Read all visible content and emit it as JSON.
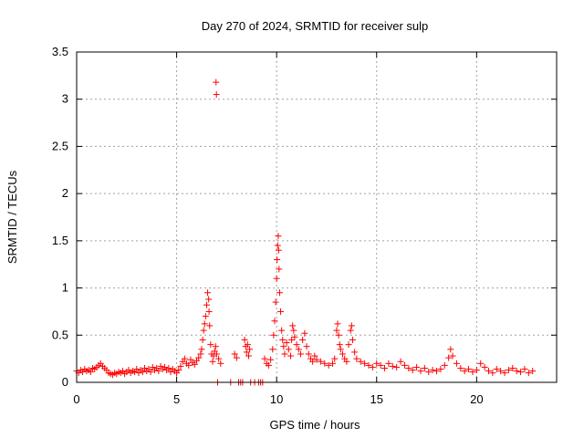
{
  "chart_data": {
    "type": "scatter",
    "title": "Day 270 of 2024, SRMTID for receiver sulp",
    "xlabel": "GPS time / hours",
    "ylabel": "SRMTID / TECUs",
    "xlim": [
      0,
      24
    ],
    "ylim": [
      0,
      3.5
    ],
    "xticks": [
      0,
      5,
      10,
      15,
      20
    ],
    "xtick_labels": [
      "0",
      "5",
      "10",
      "15",
      "20"
    ],
    "yticks": [
      0,
      0.5,
      1,
      1.5,
      2,
      2.5,
      3,
      3.5
    ],
    "ytick_labels": [
      "0",
      "0.5",
      "1",
      "1.5",
      "2",
      "2.5",
      "3",
      "3.5"
    ],
    "grid": true,
    "legend": "none",
    "series": [
      {
        "name": "SRMTID",
        "marker": "+",
        "color": "#ff0000",
        "points": [
          [
            0.0,
            0.12
          ],
          [
            0.1,
            0.1
          ],
          [
            0.2,
            0.13
          ],
          [
            0.3,
            0.11
          ],
          [
            0.4,
            0.14
          ],
          [
            0.5,
            0.12
          ],
          [
            0.6,
            0.13
          ],
          [
            0.7,
            0.11
          ],
          [
            0.8,
            0.15
          ],
          [
            0.9,
            0.14
          ],
          [
            1.0,
            0.16
          ],
          [
            1.1,
            0.18
          ],
          [
            1.2,
            0.2
          ],
          [
            1.3,
            0.17
          ],
          [
            1.4,
            0.15
          ],
          [
            1.5,
            0.13
          ],
          [
            1.6,
            0.1
          ],
          [
            1.7,
            0.09
          ],
          [
            1.8,
            0.08
          ],
          [
            1.9,
            0.1
          ],
          [
            2.0,
            0.09
          ],
          [
            2.1,
            0.11
          ],
          [
            2.2,
            0.1
          ],
          [
            2.3,
            0.12
          ],
          [
            2.4,
            0.09
          ],
          [
            2.5,
            0.11
          ],
          [
            2.6,
            0.13
          ],
          [
            2.7,
            0.1
          ],
          [
            2.8,
            0.12
          ],
          [
            2.9,
            0.11
          ],
          [
            3.0,
            0.14
          ],
          [
            3.1,
            0.1
          ],
          [
            3.2,
            0.13
          ],
          [
            3.3,
            0.11
          ],
          [
            3.4,
            0.15
          ],
          [
            3.5,
            0.12
          ],
          [
            3.6,
            0.14
          ],
          [
            3.7,
            0.11
          ],
          [
            3.8,
            0.16
          ],
          [
            3.9,
            0.13
          ],
          [
            4.0,
            0.15
          ],
          [
            4.1,
            0.12
          ],
          [
            4.2,
            0.17
          ],
          [
            4.3,
            0.14
          ],
          [
            4.4,
            0.16
          ],
          [
            4.5,
            0.13
          ],
          [
            4.6,
            0.15
          ],
          [
            4.7,
            0.11
          ],
          [
            4.8,
            0.14
          ],
          [
            4.9,
            0.12
          ],
          [
            5.0,
            0.1
          ],
          [
            5.1,
            0.13
          ],
          [
            5.2,
            0.17
          ],
          [
            5.3,
            0.22
          ],
          [
            5.4,
            0.25
          ],
          [
            5.5,
            0.2
          ],
          [
            5.6,
            0.18
          ],
          [
            5.7,
            0.24
          ],
          [
            5.8,
            0.21
          ],
          [
            5.9,
            0.19
          ],
          [
            6.0,
            0.23
          ],
          [
            6.1,
            0.26
          ],
          [
            6.2,
            0.3
          ],
          [
            6.25,
            0.35
          ],
          [
            6.3,
            0.45
          ],
          [
            6.35,
            0.55
          ],
          [
            6.4,
            0.62
          ],
          [
            6.45,
            0.7
          ],
          [
            6.5,
            0.82
          ],
          [
            6.55,
            0.95
          ],
          [
            6.6,
            0.88
          ],
          [
            6.62,
            0.75
          ],
          [
            6.65,
            0.6
          ],
          [
            6.7,
            0.4
          ],
          [
            6.75,
            0.3
          ],
          [
            6.8,
            0.22
          ],
          [
            6.85,
            0.28
          ],
          [
            6.9,
            0.33
          ],
          [
            6.95,
            0.38
          ],
          [
            7.0,
            0.3
          ],
          [
            6.97,
            3.18
          ],
          [
            6.99,
            3.05
          ],
          [
            7.05,
            0.0
          ],
          [
            7.1,
            0.25
          ],
          [
            7.2,
            0.2
          ],
          [
            7.7,
            0.0
          ],
          [
            7.9,
            0.3
          ],
          [
            8.0,
            0.26
          ],
          [
            8.1,
            0.0
          ],
          [
            8.2,
            0.0
          ],
          [
            8.3,
            0.0
          ],
          [
            8.4,
            0.45
          ],
          [
            8.45,
            0.38
          ],
          [
            8.5,
            0.32
          ],
          [
            8.55,
            0.4
          ],
          [
            8.6,
            0.28
          ],
          [
            8.65,
            0.35
          ],
          [
            8.7,
            0.0
          ],
          [
            8.9,
            0.0
          ],
          [
            9.1,
            0.0
          ],
          [
            9.2,
            0.0
          ],
          [
            9.3,
            0.0
          ],
          [
            9.4,
            0.25
          ],
          [
            9.5,
            0.2
          ],
          [
            9.6,
            0.18
          ],
          [
            9.7,
            0.24
          ],
          [
            9.8,
            0.35
          ],
          [
            9.85,
            0.5
          ],
          [
            9.9,
            0.65
          ],
          [
            9.95,
            0.85
          ],
          [
            10.0,
            1.1
          ],
          [
            10.02,
            1.3
          ],
          [
            10.05,
            1.45
          ],
          [
            10.08,
            1.55
          ],
          [
            10.1,
            1.4
          ],
          [
            10.12,
            1.2
          ],
          [
            10.15,
            0.95
          ],
          [
            10.2,
            0.75
          ],
          [
            10.25,
            0.55
          ],
          [
            10.3,
            0.45
          ],
          [
            10.35,
            0.38
          ],
          [
            10.4,
            0.3
          ],
          [
            10.5,
            0.42
          ],
          [
            10.6,
            0.35
          ],
          [
            10.7,
            0.28
          ],
          [
            10.75,
            0.45
          ],
          [
            10.8,
            0.6
          ],
          [
            10.85,
            0.55
          ],
          [
            10.9,
            0.48
          ],
          [
            11.0,
            0.4
          ],
          [
            11.1,
            0.35
          ],
          [
            11.2,
            0.3
          ],
          [
            11.3,
            0.45
          ],
          [
            11.4,
            0.52
          ],
          [
            11.5,
            0.38
          ],
          [
            11.6,
            0.3
          ],
          [
            11.7,
            0.25
          ],
          [
            11.8,
            0.22
          ],
          [
            11.9,
            0.28
          ],
          [
            12.0,
            0.24
          ],
          [
            12.2,
            0.22
          ],
          [
            12.4,
            0.2
          ],
          [
            12.6,
            0.18
          ],
          [
            12.8,
            0.2
          ],
          [
            12.9,
            0.25
          ],
          [
            13.0,
            0.55
          ],
          [
            13.05,
            0.62
          ],
          [
            13.1,
            0.5
          ],
          [
            13.15,
            0.4
          ],
          [
            13.2,
            0.35
          ],
          [
            13.3,
            0.3
          ],
          [
            13.4,
            0.25
          ],
          [
            13.5,
            0.22
          ],
          [
            13.6,
            0.4
          ],
          [
            13.7,
            0.55
          ],
          [
            13.75,
            0.6
          ],
          [
            13.8,
            0.45
          ],
          [
            13.9,
            0.32
          ],
          [
            14.0,
            0.25
          ],
          [
            14.2,
            0.22
          ],
          [
            14.4,
            0.2
          ],
          [
            14.6,
            0.18
          ],
          [
            14.8,
            0.16
          ],
          [
            15.0,
            0.2
          ],
          [
            15.2,
            0.18
          ],
          [
            15.4,
            0.15
          ],
          [
            15.6,
            0.2
          ],
          [
            15.8,
            0.17
          ],
          [
            16.0,
            0.16
          ],
          [
            16.2,
            0.22
          ],
          [
            16.4,
            0.18
          ],
          [
            16.6,
            0.15
          ],
          [
            16.8,
            0.13
          ],
          [
            17.0,
            0.16
          ],
          [
            17.2,
            0.12
          ],
          [
            17.4,
            0.15
          ],
          [
            17.6,
            0.11
          ],
          [
            17.8,
            0.13
          ],
          [
            18.0,
            0.12
          ],
          [
            18.2,
            0.14
          ],
          [
            18.4,
            0.18
          ],
          [
            18.6,
            0.26
          ],
          [
            18.7,
            0.35
          ],
          [
            18.8,
            0.28
          ],
          [
            19.0,
            0.2
          ],
          [
            19.2,
            0.15
          ],
          [
            19.4,
            0.12
          ],
          [
            19.6,
            0.14
          ],
          [
            19.8,
            0.11
          ],
          [
            20.0,
            0.13
          ],
          [
            20.2,
            0.2
          ],
          [
            20.4,
            0.16
          ],
          [
            20.6,
            0.12
          ],
          [
            20.8,
            0.1
          ],
          [
            21.0,
            0.14
          ],
          [
            21.2,
            0.12
          ],
          [
            21.4,
            0.1
          ],
          [
            21.6,
            0.13
          ],
          [
            21.8,
            0.15
          ],
          [
            22.0,
            0.12
          ],
          [
            22.2,
            0.11
          ],
          [
            22.4,
            0.14
          ],
          [
            22.6,
            0.1
          ],
          [
            22.8,
            0.12
          ]
        ]
      }
    ]
  }
}
